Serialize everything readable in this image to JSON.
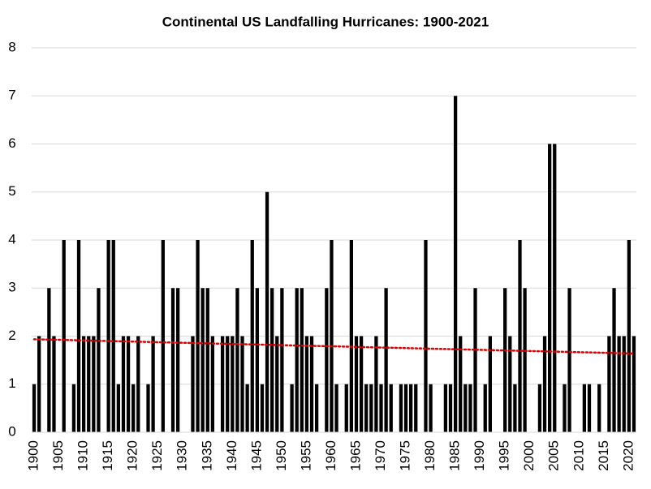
{
  "chart_data": {
    "type": "bar",
    "title": "Continental US Landfalling Hurricanes: 1900-2021",
    "categories": [
      "1900",
      null,
      null,
      null,
      null,
      "1905",
      null,
      null,
      null,
      null,
      "1910",
      null,
      null,
      null,
      null,
      "1915",
      null,
      null,
      null,
      null,
      "1920",
      null,
      null,
      null,
      null,
      "1925",
      null,
      null,
      null,
      null,
      "1930",
      null,
      null,
      null,
      null,
      "1935",
      null,
      null,
      null,
      null,
      "1940",
      null,
      null,
      null,
      null,
      "1945",
      null,
      null,
      null,
      null,
      "1950",
      null,
      null,
      null,
      null,
      "1955",
      null,
      null,
      null,
      null,
      "1960",
      null,
      null,
      null,
      null,
      "1965",
      null,
      null,
      null,
      null,
      "1970",
      null,
      null,
      null,
      null,
      "1975",
      null,
      null,
      null,
      null,
      "1980",
      null,
      null,
      null,
      null,
      "1985",
      null,
      null,
      null,
      null,
      "1990",
      null,
      null,
      null,
      null,
      "1995",
      null,
      null,
      null,
      null,
      "2000",
      null,
      null,
      null,
      null,
      "2005",
      null,
      null,
      null,
      null,
      "2010",
      null,
      null,
      null,
      null,
      "2015",
      null,
      null,
      null,
      null,
      "2020",
      null
    ],
    "values": [
      1,
      2,
      0,
      3,
      2,
      0,
      4,
      0,
      1,
      4,
      2,
      2,
      2,
      3,
      0,
      4,
      4,
      1,
      2,
      2,
      1,
      2,
      0,
      1,
      2,
      0,
      4,
      0,
      3,
      3,
      0,
      0,
      2,
      4,
      3,
      3,
      2,
      0,
      2,
      2,
      2,
      3,
      2,
      1,
      4,
      3,
      1,
      5,
      3,
      2,
      3,
      0,
      1,
      3,
      3,
      2,
      2,
      1,
      0,
      3,
      4,
      1,
      0,
      1,
      4,
      2,
      2,
      1,
      1,
      2,
      1,
      3,
      1,
      0,
      1,
      1,
      1,
      1,
      0,
      4,
      1,
      0,
      0,
      1,
      1,
      7,
      2,
      1,
      1,
      3,
      0,
      1,
      2,
      0,
      0,
      3,
      2,
      1,
      4,
      3,
      0,
      0,
      1,
      2,
      6,
      6,
      0,
      1,
      3,
      0,
      0,
      1,
      1,
      0,
      1,
      0,
      2,
      3,
      2,
      2,
      4,
      2
    ],
    "color": "#000000",
    "ylim": [
      0,
      8
    ],
    "yticks": [
      0,
      1,
      2,
      3,
      4,
      5,
      6,
      7,
      8
    ],
    "grid": true,
    "trendline": {
      "type": "linear",
      "color": "#e00000"
    }
  }
}
